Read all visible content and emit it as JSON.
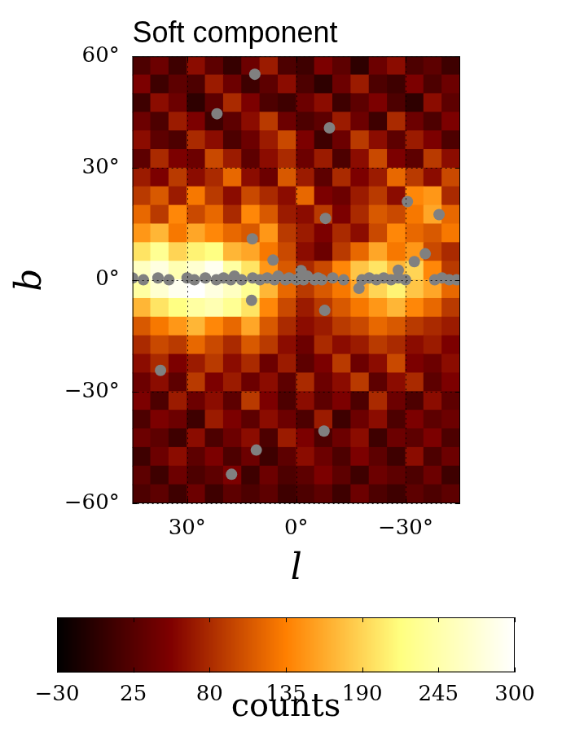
{
  "chart_data": {
    "type": "heatmap",
    "title": "Soft component",
    "x_label": "l",
    "y_label": "b",
    "xlim": [
      45,
      -45
    ],
    "ylim": [
      -60,
      60
    ],
    "xticks": [
      {
        "value": 30,
        "label": "30°"
      },
      {
        "value": 0,
        "label": "0°"
      },
      {
        "value": -30,
        "label": "−30°"
      }
    ],
    "yticks": [
      {
        "value": -60,
        "label": "−60°"
      },
      {
        "value": -30,
        "label": "−30°"
      },
      {
        "value": 0,
        "label": "0°"
      },
      {
        "value": 30,
        "label": "30°"
      },
      {
        "value": 60,
        "label": "60°"
      }
    ],
    "grid": true,
    "cells": {
      "x": [
        42.5,
        37.5,
        32.5,
        27.5,
        22.5,
        17.5,
        12.5,
        7.5,
        2.5,
        -2.5,
        -7.5,
        -12.5,
        -17.5,
        -22.5,
        -27.5,
        -32.5,
        -37.5,
        -42.5
      ],
      "y": [
        57.5,
        52.5,
        47.5,
        42.5,
        37.5,
        32.5,
        27.5,
        22.5,
        17.5,
        12.5,
        7.5,
        2.5,
        -2.5,
        -7.5,
        -12.5,
        -17.5,
        -22.5,
        -27.5,
        -32.5,
        -37.5,
        -42.5,
        -47.5,
        -52.5,
        -57.5
      ],
      "values": [
        [
          20,
          40,
          10,
          60,
          30,
          5,
          40,
          70,
          20,
          10,
          50,
          30,
          0,
          40,
          60,
          20,
          30,
          10
        ],
        [
          50,
          10,
          30,
          20,
          70,
          40,
          10,
          30,
          60,
          20,
          0,
          40,
          70,
          20,
          10,
          50,
          20,
          40
        ],
        [
          10,
          60,
          40,
          0,
          30,
          80,
          50,
          20,
          10,
          40,
          60,
          10,
          30,
          50,
          20,
          0,
          60,
          30
        ],
        [
          40,
          20,
          70,
          50,
          10,
          30,
          60,
          90,
          40,
          20,
          30,
          70,
          40,
          10,
          80,
          40,
          20,
          50
        ],
        [
          60,
          30,
          20,
          80,
          60,
          20,
          40,
          70,
          100,
          50,
          10,
          40,
          90,
          60,
          30,
          70,
          50,
          20
        ],
        [
          30,
          80,
          50,
          40,
          100,
          70,
          30,
          60,
          80,
          40,
          70,
          20,
          60,
          100,
          50,
          30,
          90,
          60
        ],
        [
          70,
          50,
          90,
          60,
          80,
          120,
          60,
          40,
          110,
          70,
          30,
          80,
          50,
          70,
          120,
          90,
          60,
          100
        ],
        [
          90,
          110,
          70,
          130,
          90,
          60,
          100,
          80,
          60,
          120,
          50,
          40,
          70,
          90,
          60,
          140,
          150,
          80
        ],
        [
          120,
          90,
          140,
          100,
          120,
          80,
          140,
          110,
          70,
          60,
          90,
          50,
          80,
          110,
          100,
          130,
          160,
          120
        ],
        [
          150,
          170,
          130,
          160,
          140,
          120,
          110,
          150,
          90,
          70,
          50,
          80,
          60,
          100,
          140,
          120,
          110,
          130
        ],
        [
          200,
          230,
          190,
          210,
          220,
          170,
          160,
          130,
          100,
          60,
          40,
          90,
          120,
          160,
          130,
          150,
          100,
          80
        ],
        [
          260,
          280,
          250,
          270,
          290,
          240,
          200,
          150,
          110,
          80,
          100,
          140,
          180,
          200,
          170,
          190,
          140,
          90
        ],
        [
          240,
          270,
          290,
          300,
          280,
          260,
          230,
          170,
          120,
          90,
          110,
          130,
          160,
          190,
          210,
          180,
          160,
          120
        ],
        [
          170,
          200,
          220,
          240,
          250,
          230,
          200,
          140,
          100,
          70,
          90,
          110,
          130,
          150,
          170,
          140,
          120,
          90
        ],
        [
          110,
          130,
          150,
          170,
          140,
          120,
          160,
          110,
          80,
          60,
          70,
          90,
          100,
          120,
          110,
          90,
          80,
          70
        ],
        [
          80,
          100,
          90,
          120,
          100,
          80,
          110,
          90,
          60,
          40,
          80,
          60,
          70,
          90,
          80,
          60,
          70,
          50
        ],
        [
          60,
          80,
          50,
          70,
          90,
          60,
          80,
          40,
          70,
          30,
          50,
          90,
          40,
          60,
          100,
          50,
          40,
          60
        ],
        [
          40,
          60,
          30,
          90,
          50,
          70,
          40,
          60,
          30,
          80,
          40,
          60,
          90,
          30,
          60,
          80,
          30,
          50
        ],
        [
          50,
          20,
          70,
          40,
          60,
          30,
          90,
          50,
          20,
          60,
          30,
          50,
          20,
          80,
          40,
          20,
          60,
          30
        ],
        [
          20,
          50,
          40,
          10,
          70,
          50,
          30,
          60,
          40,
          20,
          70,
          10,
          40,
          60,
          20,
          50,
          30,
          40
        ],
        [
          40,
          30,
          10,
          60,
          20,
          40,
          60,
          20,
          70,
          50,
          20,
          40,
          60,
          10,
          40,
          30,
          50,
          20
        ],
        [
          10,
          40,
          60,
          30,
          50,
          20,
          40,
          10,
          30,
          60,
          40,
          20,
          50,
          30,
          10,
          60,
          20,
          40
        ],
        [
          30,
          10,
          40,
          20,
          30,
          50,
          10,
          40,
          20,
          30,
          50,
          30,
          10,
          40,
          30,
          20,
          40,
          10
        ],
        [
          20,
          30,
          10,
          40,
          10,
          30,
          20,
          30,
          10,
          20,
          30,
          10,
          40,
          20,
          10,
          30,
          20,
          30
        ]
      ]
    },
    "colorbar": {
      "label": "counts",
      "range": [
        -30,
        300
      ],
      "ticks": [
        {
          "value": -30,
          "label": "−30"
        },
        25,
        80,
        135,
        190,
        245,
        300
      ]
    },
    "masked_sources": {
      "color": "#808080",
      "marker": "circle",
      "points": [
        [
          11.4,
          55.2
        ],
        [
          21.8,
          44.6
        ],
        [
          -9.1,
          40.8
        ],
        [
          -8,
          16.5
        ],
        [
          -30.5,
          21
        ],
        [
          -39.2,
          17.5
        ],
        [
          12.1,
          11
        ],
        [
          6.4,
          5.3
        ],
        [
          -35.4,
          7
        ],
        [
          -32.4,
          4.9
        ],
        [
          -28,
          2.6
        ],
        [
          -1.3,
          2.5
        ],
        [
          -17.2,
          -2.3
        ],
        [
          -7.8,
          -8.2
        ],
        [
          12.3,
          -5.5
        ],
        [
          -7.6,
          -40.6
        ],
        [
          37.3,
          -24.3
        ],
        [
          11,
          -45.7
        ],
        [
          17.8,
          -52.2
        ],
        [
          45,
          0.5
        ],
        [
          42,
          0
        ],
        [
          38,
          0.5
        ],
        [
          35,
          0
        ],
        [
          30,
          0.5
        ],
        [
          28,
          0
        ],
        [
          25,
          0.5
        ],
        [
          22,
          0
        ],
        [
          20,
          0.5
        ],
        [
          18,
          0
        ],
        [
          17,
          1
        ],
        [
          15,
          0
        ],
        [
          12,
          0.5
        ],
        [
          10,
          0
        ],
        [
          8,
          0.5
        ],
        [
          6,
          0
        ],
        [
          5,
          1
        ],
        [
          3,
          0
        ],
        [
          2,
          0.5
        ],
        [
          0,
          0
        ],
        [
          -1,
          0.5
        ],
        [
          -2,
          0
        ],
        [
          -3,
          1
        ],
        [
          -5,
          0
        ],
        [
          -6,
          0.5
        ],
        [
          -7,
          0
        ],
        [
          -10,
          0.5
        ],
        [
          -13,
          0
        ],
        [
          -18,
          0
        ],
        [
          -20,
          0.5
        ],
        [
          -22,
          0
        ],
        [
          -24,
          0.5
        ],
        [
          -26,
          0
        ],
        [
          -28,
          0.5
        ],
        [
          -30,
          0
        ],
        [
          -38,
          0
        ],
        [
          -40,
          0.5
        ],
        [
          -42,
          0
        ],
        [
          -44,
          0
        ]
      ]
    }
  }
}
